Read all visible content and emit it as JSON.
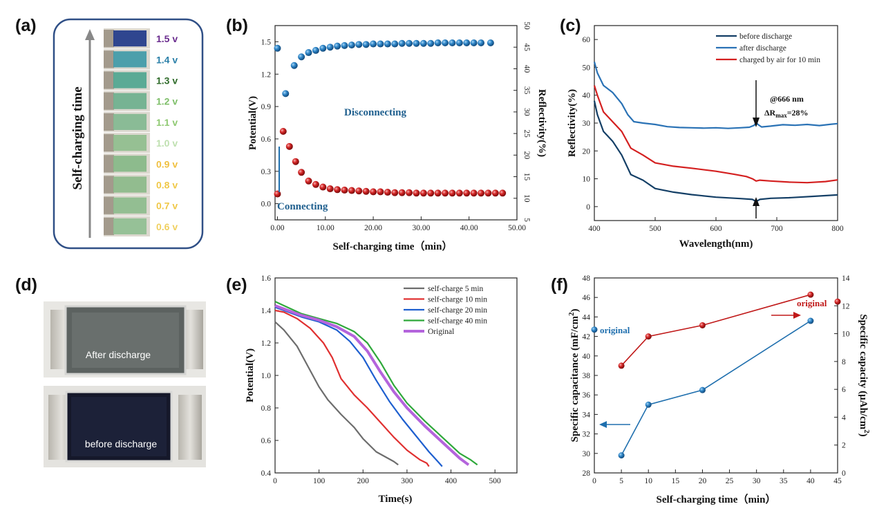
{
  "panels": {
    "a": {
      "label": "(a)",
      "axis_label": "Self-charging time",
      "voltages": [
        {
          "text": "1.5 v",
          "color": "#6a2c8e"
        },
        {
          "text": "1.4 v",
          "color": "#2a7fa8"
        },
        {
          "text": "1.3 v",
          "color": "#2f6b2a"
        },
        {
          "text": "1.2 v",
          "color": "#7fbf6a"
        },
        {
          "text": "1.1 v",
          "color": "#8fc972"
        },
        {
          "text": "1.0 v",
          "color": "#bfe0b0"
        },
        {
          "text": "0.9 v",
          "color": "#f0c040"
        },
        {
          "text": "0.8 v",
          "color": "#f0c848"
        },
        {
          "text": "0.7 v",
          "color": "#f0c848"
        },
        {
          "text": "0.6 v",
          "color": "#f0d060"
        }
      ]
    },
    "b": {
      "label": "(b)"
    },
    "c": {
      "label": "(c)"
    },
    "d": {
      "label": "(d)",
      "top_caption": "After discharge",
      "bottom_caption": "before discharge"
    },
    "e": {
      "label": "(e)"
    },
    "f": {
      "label": "(f)"
    }
  },
  "chart_data": [
    {
      "id": "b",
      "type": "scatter",
      "xlabel": "Self-charging time（min）",
      "ylabel": "Potential(V)",
      "y2label": "Reflectivity(%)",
      "xlim": [
        -0.5,
        50
      ],
      "ylim": [
        -0.15,
        1.65
      ],
      "y2lim": [
        5,
        50
      ],
      "xticks": [
        "0.00",
        "10.00",
        "20.00",
        "30.00",
        "40.00",
        "50.00"
      ],
      "yticks": [
        "0.0",
        "0.3",
        "0.6",
        "0.9",
        "1.2",
        "1.5"
      ],
      "y2ticks": [
        "5",
        "10",
        "15",
        "20",
        "25",
        "30",
        "35",
        "40",
        "45",
        "50"
      ],
      "annotations": {
        "disconnecting": "Disconnecting",
        "connecting": "Connecting"
      },
      "series": [
        {
          "axis": "left",
          "color": "#1f6fae",
          "x": [
            0,
            1.7,
            3.5,
            5,
            6.5,
            8,
            9.5,
            11,
            12.5,
            14,
            15.5,
            17,
            18.5,
            20,
            21.5,
            23,
            24.5,
            26,
            27.5,
            29,
            30.5,
            32,
            33.5,
            35,
            36.5,
            38,
            39.5,
            41,
            42.5,
            44.5
          ],
          "y": [
            1.44,
            1.02,
            1.28,
            1.36,
            1.4,
            1.42,
            1.44,
            1.45,
            1.46,
            1.465,
            1.47,
            1.475,
            1.475,
            1.48,
            1.48,
            1.48,
            1.48,
            1.485,
            1.485,
            1.485,
            1.485,
            1.485,
            1.49,
            1.49,
            1.49,
            1.49,
            1.49,
            1.49,
            1.49,
            1.49
          ]
        },
        {
          "axis": "right",
          "color": "#c01818",
          "x": [
            0,
            1.2,
            2.5,
            3.8,
            5,
            6.5,
            8,
            9.5,
            11,
            12.5,
            14,
            15.5,
            17,
            18.5,
            20,
            21.5,
            23,
            24.5,
            26,
            27.5,
            29,
            30.5,
            32,
            33.5,
            35,
            36.5,
            38,
            39.5,
            41,
            42.5,
            44,
            45.5,
            47
          ],
          "y": [
            11,
            25.5,
            22,
            18.5,
            16,
            14,
            13.2,
            12.6,
            12.2,
            12,
            11.9,
            11.8,
            11.7,
            11.6,
            11.5,
            11.5,
            11.4,
            11.3,
            11.3,
            11.3,
            11.2,
            11.2,
            11.2,
            11.2,
            11.2,
            11.2,
            11.2,
            11.2,
            11.2,
            11.2,
            11.2,
            11.2,
            11.2
          ]
        }
      ]
    },
    {
      "id": "c",
      "type": "line",
      "xlabel": "Wavelength(nm)",
      "ylabel": "Reflectivity(%)",
      "xlim": [
        400,
        800
      ],
      "ylim": [
        -5,
        65
      ],
      "xticks": [
        "400",
        "500",
        "600",
        "700",
        "800"
      ],
      "yticks": [
        "0",
        "10",
        "20",
        "30",
        "40",
        "50",
        "60"
      ],
      "annotations": {
        "wavelength": "@666 nm",
        "delta_main": "ΔR",
        "delta_sub": "max",
        "delta_tail": "=28%"
      },
      "series": [
        {
          "name": "before discharge",
          "color": "#143f66",
          "x": [
            400,
            405,
            415,
            430,
            445,
            460,
            480,
            500,
            530,
            560,
            600,
            640,
            660,
            666,
            672,
            690,
            720,
            760,
            800
          ],
          "y": [
            38,
            33,
            27,
            23.5,
            18.5,
            11.5,
            9.5,
            6.5,
            5.2,
            4.3,
            3.4,
            2.9,
            2.6,
            1.8,
            2.6,
            3,
            3.2,
            3.7,
            4.2
          ]
        },
        {
          "name": "after discharge",
          "color": "#2a72b5",
          "x": [
            400,
            405,
            415,
            430,
            445,
            455,
            465,
            480,
            500,
            520,
            540,
            560,
            580,
            600,
            620,
            640,
            655,
            663,
            666,
            669,
            675,
            690,
            710,
            730,
            750,
            770,
            790,
            800
          ],
          "y": [
            52,
            48,
            43.5,
            41,
            37,
            33,
            30.5,
            30,
            29.5,
            28.7,
            28.4,
            28.3,
            28.2,
            28.3,
            28.1,
            28.3,
            28.5,
            29.2,
            30.2,
            29.5,
            28.6,
            28.9,
            29.4,
            29.2,
            29.5,
            29.1,
            29.6,
            29.8
          ]
        },
        {
          "name": "charged by air for 10 min",
          "color": "#d42020",
          "x": [
            400,
            405,
            415,
            430,
            445,
            460,
            480,
            500,
            530,
            560,
            600,
            630,
            650,
            660,
            666,
            672,
            690,
            720,
            750,
            780,
            800
          ],
          "y": [
            43.5,
            40,
            34,
            30.5,
            27,
            21,
            18.5,
            15.7,
            14.5,
            13.8,
            12.7,
            11.6,
            10.8,
            10,
            9.2,
            9.5,
            9.2,
            8.8,
            8.6,
            9,
            9.6
          ]
        }
      ]
    },
    {
      "id": "e",
      "type": "line",
      "xlabel": "Time(s)",
      "ylabel": "Potential(V)",
      "xlim": [
        0,
        550
      ],
      "ylim": [
        0.4,
        1.6
      ],
      "xticks": [
        "0",
        "100",
        "200",
        "300",
        "400",
        "500"
      ],
      "yticks": [
        "0.4",
        "0.6",
        "0.8",
        "1.0",
        "1.2",
        "1.4",
        "1.6"
      ],
      "series": [
        {
          "name": "self-charge 5 min",
          "color": "#6d6d6d",
          "x": [
            0,
            20,
            50,
            80,
            100,
            120,
            150,
            180,
            200,
            230,
            250,
            270,
            280
          ],
          "y": [
            1.33,
            1.28,
            1.18,
            1.03,
            0.93,
            0.85,
            0.76,
            0.68,
            0.61,
            0.53,
            0.5,
            0.47,
            0.45
          ]
        },
        {
          "name": "self-charge 10 min",
          "color": "#e03030",
          "x": [
            0,
            20,
            50,
            80,
            110,
            130,
            150,
            180,
            210,
            240,
            270,
            300,
            330,
            345,
            350
          ],
          "y": [
            1.4,
            1.39,
            1.35,
            1.29,
            1.2,
            1.11,
            0.98,
            0.88,
            0.8,
            0.71,
            0.62,
            0.54,
            0.48,
            0.46,
            0.44
          ]
        },
        {
          "name": "self-charge 20 min",
          "color": "#1e5fcf",
          "x": [
            0,
            20,
            60,
            100,
            140,
            170,
            200,
            230,
            260,
            290,
            320,
            350,
            370,
            380
          ],
          "y": [
            1.42,
            1.4,
            1.36,
            1.33,
            1.28,
            1.21,
            1.11,
            0.97,
            0.84,
            0.73,
            0.63,
            0.53,
            0.47,
            0.44
          ]
        },
        {
          "name": "self-charge 40 min",
          "color": "#2ea83a",
          "x": [
            0,
            20,
            60,
            100,
            140,
            180,
            210,
            240,
            270,
            300,
            340,
            380,
            420,
            445,
            460
          ],
          "y": [
            1.455,
            1.43,
            1.38,
            1.35,
            1.32,
            1.27,
            1.2,
            1.08,
            0.94,
            0.83,
            0.72,
            0.62,
            0.52,
            0.48,
            0.45
          ]
        },
        {
          "name": "Original",
          "color": "#b464dc",
          "x": [
            0,
            20,
            60,
            100,
            140,
            180,
            210,
            240,
            270,
            300,
            340,
            380,
            420,
            440
          ],
          "y": [
            1.43,
            1.41,
            1.37,
            1.34,
            1.3,
            1.24,
            1.15,
            1.02,
            0.9,
            0.8,
            0.69,
            0.59,
            0.49,
            0.45
          ]
        }
      ]
    },
    {
      "id": "f",
      "type": "line",
      "xlabel": "Self-charging time（min）",
      "ylabel": "Specific capacitance (mF/cm",
      "ylabel_sup": "2",
      "ylabel_tail": ")",
      "y2label": "Specific capacity (μAh/cm",
      "y2label_sup": "2",
      "y2label_tail": ")",
      "xlim": [
        0,
        45
      ],
      "ylim": [
        28,
        48
      ],
      "y2lim": [
        0,
        14
      ],
      "xticks": [
        "0",
        "5",
        "10",
        "15",
        "20",
        "25",
        "30",
        "35",
        "40",
        "45"
      ],
      "yticks": [
        "28",
        "30",
        "32",
        "34",
        "36",
        "38",
        "40",
        "42",
        "44",
        "46",
        "48"
      ],
      "y2ticks": [
        "0",
        "2",
        "4",
        "6",
        "8",
        "10",
        "12",
        "14"
      ],
      "annotations": {
        "original_left": "original",
        "original_right": "original"
      },
      "series": [
        {
          "axis": "left",
          "color": "#1f6fae",
          "x": [
            5,
            10,
            20,
            40
          ],
          "y": [
            29.8,
            35,
            36.5,
            43.6
          ],
          "original": 42.7
        },
        {
          "axis": "right",
          "color": "#c01818",
          "x": [
            5,
            10,
            20,
            40
          ],
          "y": [
            7.7,
            9.8,
            10.6,
            12.8
          ],
          "original": 12.3
        }
      ]
    }
  ]
}
